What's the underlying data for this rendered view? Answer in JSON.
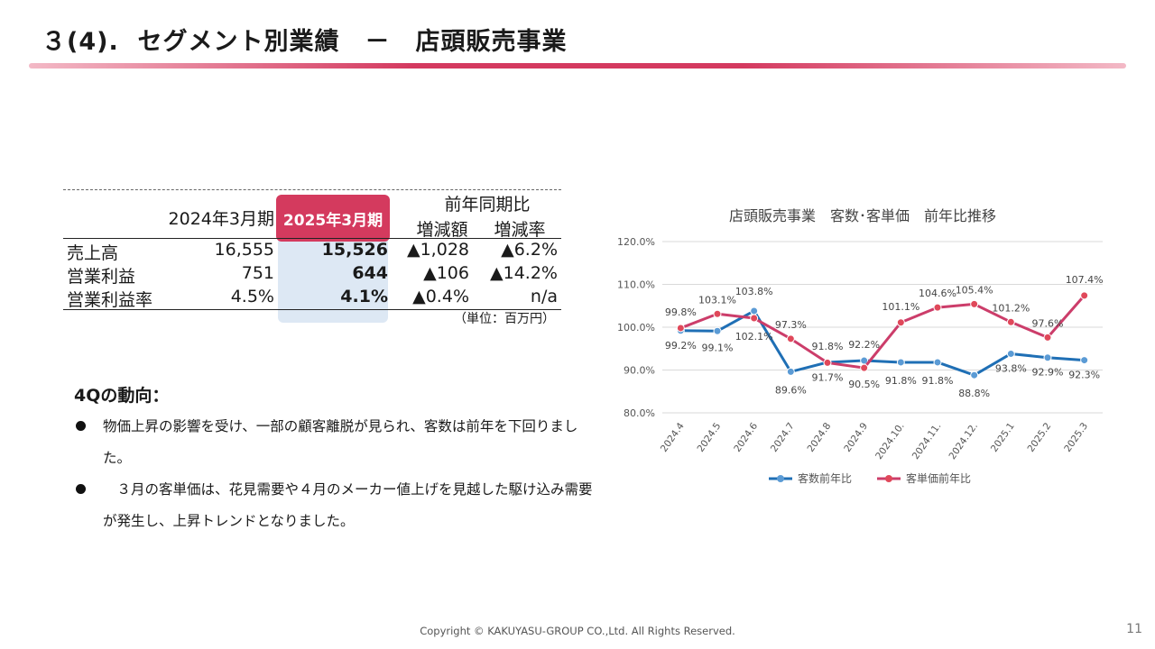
{
  "title": "３(4).  セグメント別業績　－　店頭販売事業",
  "table": {
    "col_2024": "2024年3月期",
    "col_2025": "2025年3月期",
    "yoy_header": "前年同期比",
    "col_diff": "増減額",
    "col_rate": "増減率",
    "rows": [
      {
        "label": "売上高",
        "v2024": "16,555",
        "v2025": "15,526",
        "diff": "▲1,028",
        "rate": "▲6.2%"
      },
      {
        "label": "営業利益",
        "v2024": "751",
        "v2025": "644",
        "diff": "▲106",
        "rate": "▲14.2%"
      },
      {
        "label": "営業利益率",
        "v2024": "4.5%",
        "v2025": "4.1%",
        "diff": "▲0.4%",
        "rate": "n/a"
      }
    ],
    "unit": "（単位：百万円）"
  },
  "trend": {
    "heading": "4Qの動向：",
    "bullets": [
      "物価上昇の影響を受け、一部の顧客離脱が見られ、客数は前年を下回りました。",
      "　３月の客単価は、花見需要や４月のメーカー値上げを見越した駆け込み需要が発生し、上昇トレンドとなりました。"
    ]
  },
  "chart_data": {
    "type": "line",
    "title": "店頭販売事業　客数･客単価　前年比推移",
    "categories": [
      "2024.4",
      "2024.5",
      "2024.6",
      "2024.7",
      "2024.8",
      "2024.9",
      "2024.10.",
      "2024.11.",
      "2024.12.",
      "2025.1",
      "2025.2",
      "2025.3"
    ],
    "series": [
      {
        "name": "客数前年比",
        "color": "#1f6fb5",
        "marker": "#5b9bd5",
        "values": [
          99.2,
          99.1,
          103.8,
          89.6,
          91.8,
          92.2,
          91.8,
          91.8,
          88.8,
          93.8,
          92.9,
          92.3
        ],
        "labels": [
          "99.2%",
          "99.1%",
          "103.8%",
          "89.6%",
          "91.8%",
          "92.2%",
          "91.8%",
          "91.8%",
          "88.8%",
          "93.8%",
          "92.9%",
          "92.3%"
        ]
      },
      {
        "name": "客単価前年比",
        "color": "#cc3d6a",
        "marker": "#e0485a",
        "values": [
          99.8,
          103.1,
          102.1,
          97.3,
          91.7,
          90.5,
          101.1,
          104.6,
          105.4,
          101.2,
          97.6,
          107.4
        ],
        "labels": [
          "99.8%",
          "103.1%",
          "102.1%",
          "97.3%",
          "91.7%",
          "90.5%",
          "101.1%",
          "104.6%",
          "105.4%",
          "101.2%",
          "97.6%",
          "107.4%"
        ]
      }
    ],
    "yticks": [
      "80.0%",
      "90.0%",
      "100.0%",
      "110.0%",
      "120.0%"
    ],
    "ylim": [
      80,
      120
    ],
    "grid": true,
    "legend": "bottom"
  },
  "footer": "Copyright © KAKUYASU-GROUP CO.,Ltd. All Rights Reserved.",
  "page_number": "11"
}
